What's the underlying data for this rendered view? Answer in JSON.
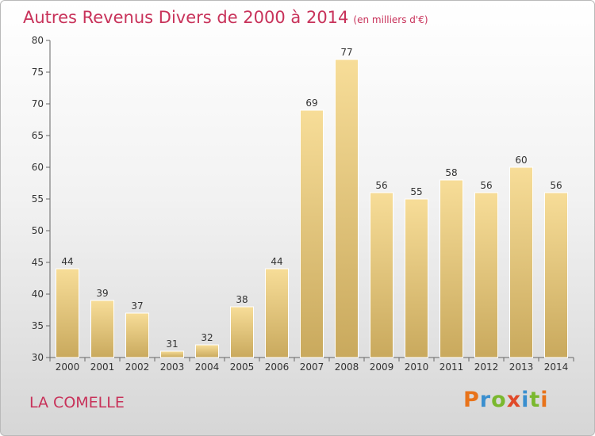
{
  "chart": {
    "title": "Autres Revenus Divers de 2000 à 2014",
    "subtitle": "(en milliers d'€)",
    "location": "LA COMELLE",
    "logo": {
      "letters": [
        "P",
        "r",
        "o",
        "x",
        "i",
        "t",
        "i"
      ],
      "colors": [
        "#e8731a",
        "#3a8fcf",
        "#7ab82e",
        "#e04a2a",
        "#3a8fcf",
        "#7ab82e",
        "#e8731a"
      ]
    }
  },
  "colors": {
    "accent": "#c8325a",
    "bar_top": "#f7dd98",
    "bar_bottom": "#c9a95d",
    "bar_edge": "#ffffff"
  },
  "chart_data": {
    "type": "bar",
    "title": "Autres Revenus Divers de 2000 à 2014",
    "subtitle": "(en milliers d'€)",
    "xlabel": "",
    "ylabel": "",
    "categories": [
      "2000",
      "2001",
      "2002",
      "2003",
      "2004",
      "2005",
      "2006",
      "2007",
      "2008",
      "2009",
      "2010",
      "2011",
      "2012",
      "2013",
      "2014"
    ],
    "values": [
      44,
      39,
      37,
      31,
      32,
      38,
      44,
      69,
      77,
      56,
      55,
      58,
      56,
      60,
      56
    ],
    "ylim": [
      30,
      80
    ],
    "yticks": [
      30,
      35,
      40,
      45,
      50,
      55,
      60,
      65,
      70,
      75,
      80
    ],
    "grid": false,
    "legend": "none"
  }
}
